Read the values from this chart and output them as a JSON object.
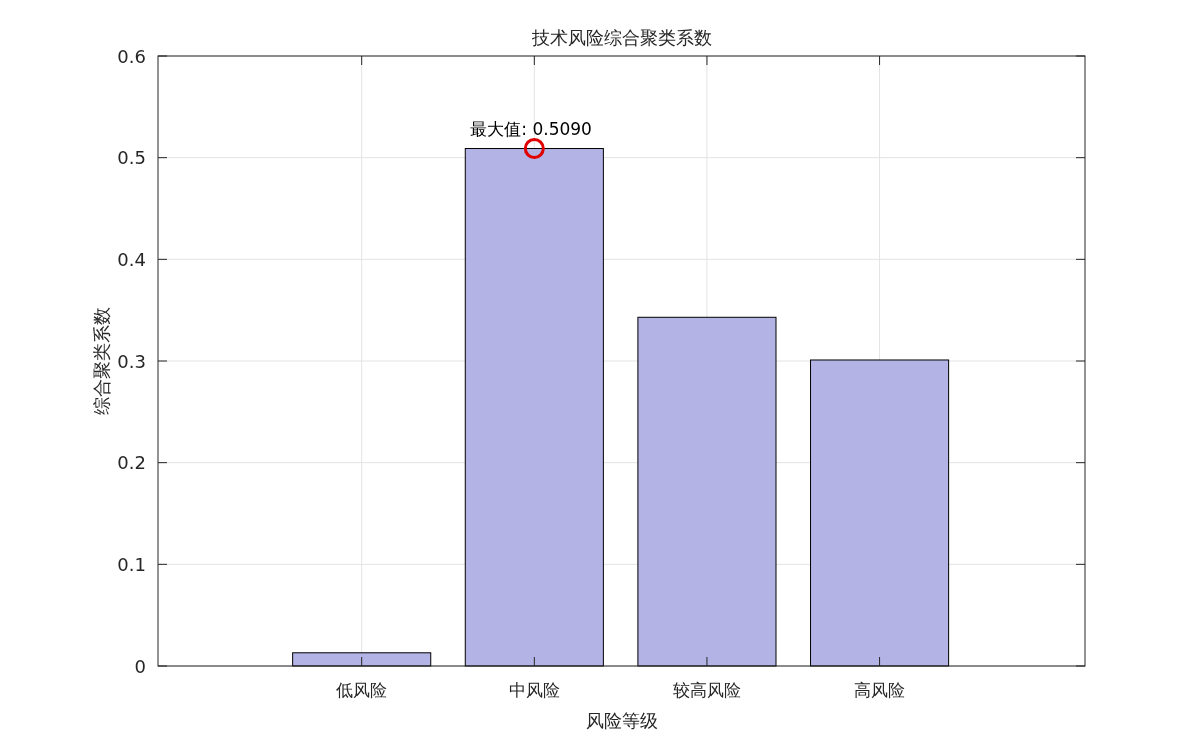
{
  "chart_data": {
    "type": "bar",
    "title": "技术风险综合聚类系数",
    "xlabel": "风险等级",
    "ylabel": "综合聚类系数",
    "categories": [
      "低风险",
      "中风险",
      "较高风险",
      "高风险"
    ],
    "series": [
      {
        "type": "bar",
        "color": "#b3b3e5",
        "values": [
          0.013,
          0.509,
          0.343,
          0.301
        ]
      },
      {
        "type": "scatter",
        "marker": "circle",
        "color": "#e00000",
        "x": [
          "中风险"
        ],
        "values": [
          0.509
        ]
      }
    ],
    "annotations": [
      {
        "text": "最大值: 0.5090",
        "x": "中风险",
        "y": 0.509
      }
    ],
    "ylim": [
      0,
      0.6
    ],
    "yticks": [
      0,
      0.1,
      0.2,
      0.3,
      0.4,
      0.5,
      0.6
    ],
    "grid": true
  }
}
